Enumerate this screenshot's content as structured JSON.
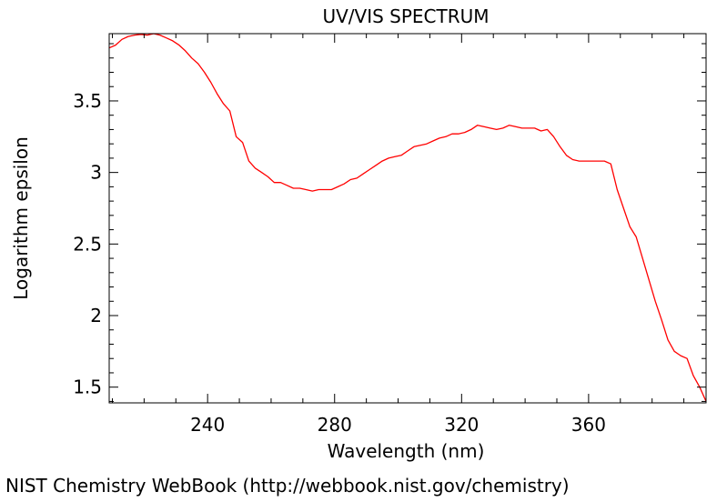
{
  "footer": "NIST Chemistry WebBook (http://webbook.nist.gov/chemistry)",
  "chart_data": {
    "type": "line",
    "title": "UV/VIS SPECTRUM",
    "xlabel": "Wavelength (nm)",
    "ylabel": "Logarithm epsilon",
    "xlim": [
      209,
      397
    ],
    "ylim": [
      1.39,
      3.97
    ],
    "x_ticks": [
      240,
      280,
      320,
      360
    ],
    "x_tick_labels": [
      "240",
      "280",
      "320",
      "360"
    ],
    "y_ticks": [
      1.5,
      2,
      2.5,
      3,
      3.5
    ],
    "y_tick_labels": [
      "1.5",
      "2",
      "2.5",
      "3",
      "3.5"
    ],
    "grid": false,
    "line_color": "#ff0000",
    "series": [
      {
        "x": [
          209,
          211,
          213,
          215,
          217,
          219,
          221,
          223,
          225,
          227,
          229,
          231,
          233,
          235,
          237,
          239,
          241,
          243,
          245,
          247,
          249,
          251,
          253,
          255,
          257,
          259,
          261,
          263,
          265,
          267,
          269,
          271,
          273,
          275,
          277,
          279,
          281,
          283,
          285,
          287,
          289,
          291,
          293,
          295,
          297,
          299,
          301,
          303,
          305,
          307,
          309,
          311,
          313,
          315,
          317,
          319,
          321,
          323,
          325,
          327,
          329,
          331,
          333,
          335,
          337,
          339,
          341,
          343,
          345,
          347,
          349,
          351,
          353,
          355,
          357,
          359,
          361,
          363,
          365,
          367,
          369,
          371,
          373,
          375,
          377,
          379,
          381,
          383,
          385,
          387,
          389,
          391,
          393,
          395,
          397
        ],
        "y": [
          3.87,
          3.89,
          3.93,
          3.95,
          3.96,
          3.965,
          3.96,
          3.97,
          3.96,
          3.94,
          3.92,
          3.89,
          3.85,
          3.8,
          3.76,
          3.7,
          3.63,
          3.55,
          3.48,
          3.43,
          3.25,
          3.21,
          3.08,
          3.03,
          3.0,
          2.97,
          2.93,
          2.93,
          2.91,
          2.89,
          2.89,
          2.88,
          2.87,
          2.88,
          2.88,
          2.88,
          2.9,
          2.92,
          2.95,
          2.96,
          2.99,
          3.02,
          3.05,
          3.08,
          3.1,
          3.11,
          3.12,
          3.15,
          3.18,
          3.19,
          3.2,
          3.22,
          3.24,
          3.25,
          3.27,
          3.27,
          3.28,
          3.3,
          3.33,
          3.32,
          3.31,
          3.3,
          3.31,
          3.33,
          3.32,
          3.31,
          3.31,
          3.31,
          3.29,
          3.3,
          3.25,
          3.18,
          3.12,
          3.09,
          3.08,
          3.08,
          3.08,
          3.08,
          3.08,
          3.06,
          2.88,
          2.75,
          2.62,
          2.55,
          2.4,
          2.25,
          2.1,
          1.97,
          1.83,
          1.75,
          1.72,
          1.7,
          1.58,
          1.5,
          1.4
        ]
      }
    ]
  }
}
